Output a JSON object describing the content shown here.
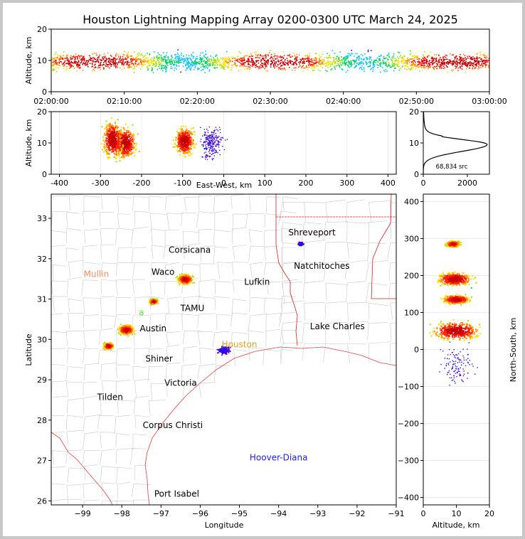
{
  "chart_data": {
    "title": "Houston Lightning Mapping Array 0200-0300 UTC March 24, 2025",
    "panels": {
      "time_altitude": {
        "type": "heatmap",
        "ylabel": "Altitude, km",
        "ylim": [
          0,
          20
        ],
        "yticks": [
          "0",
          "10",
          "20"
        ],
        "xticks": [
          "02:00:00",
          "02:10:00",
          "02:20:00",
          "02:30:00",
          "02:40:00",
          "02:50:00",
          "03:00:00"
        ],
        "band_center_km": 9.5
      },
      "ew_altitude": {
        "type": "heatmap",
        "xlabel": "East-West, km",
        "ylabel": "Altitude, km",
        "xlim": [
          -420,
          420
        ],
        "ylim": [
          0,
          20
        ],
        "xticks": [
          -400,
          -300,
          -200,
          -100,
          0,
          100,
          200,
          300,
          400
        ],
        "yticks": [
          0,
          10,
          20
        ],
        "cells": [
          {
            "x": -240,
            "z": 10,
            "sx": 25,
            "sz": 3.5
          },
          {
            "x": -270,
            "z": 11,
            "sx": 22,
            "sz": 4
          },
          {
            "x": -95,
            "z": 10.5,
            "sx": 22,
            "sz": 3
          }
        ]
      },
      "altitude_histogram": {
        "type": "line",
        "xlim": [
          0,
          3000
        ],
        "ylim": [
          0,
          20
        ],
        "xticks": [
          0,
          2000
        ],
        "yticks": [
          0,
          10,
          20
        ],
        "peak_altitude_km": 9.5,
        "peak_count": 2900,
        "annotation": "68,834 src"
      },
      "plan_view": {
        "type": "scatter",
        "xlabel": "Longitude",
        "ylabel": "Latitude",
        "xlim": [
          -99.8,
          -91
        ],
        "ylim": [
          25.9,
          33.6
        ],
        "xticks": [
          -99,
          -98,
          -97,
          -96,
          -95,
          -94,
          -93,
          -92,
          -91
        ],
        "yticks": [
          26,
          27,
          28,
          29,
          30,
          31,
          32,
          33
        ],
        "cities": [
          {
            "name": "Shreveport",
            "lon": -93.15,
            "lat": 32.58,
            "color": "#000000"
          },
          {
            "name": "Corsicana",
            "lon": -96.27,
            "lat": 32.15,
            "color": "#000000"
          },
          {
            "name": "Mullin",
            "lon": -98.65,
            "lat": 31.55,
            "color": "#f09060"
          },
          {
            "name": "Waco",
            "lon": -96.95,
            "lat": 31.6,
            "color": "#000000"
          },
          {
            "name": "Natchitoches",
            "lon": -92.9,
            "lat": 31.75,
            "color": "#000000"
          },
          {
            "name": "Lufkin",
            "lon": -94.55,
            "lat": 31.35,
            "color": "#000000"
          },
          {
            "name": "TAMU",
            "lon": -96.2,
            "lat": 30.7,
            "color": "#000000"
          },
          {
            "name": "a",
            "lon": -97.5,
            "lat": 30.6,
            "color": "#60e040"
          },
          {
            "name": "Austin",
            "lon": -97.2,
            "lat": 30.2,
            "color": "#000000"
          },
          {
            "name": "Lake Charles",
            "lon": -92.5,
            "lat": 30.25,
            "color": "#000000"
          },
          {
            "name": "Houston",
            "lon": -95.0,
            "lat": 29.8,
            "color": "#e0a020"
          },
          {
            "name": "Shiner",
            "lon": -97.05,
            "lat": 29.45,
            "color": "#000000"
          },
          {
            "name": "Victoria",
            "lon": -96.5,
            "lat": 28.85,
            "color": "#000000"
          },
          {
            "name": "Tilden",
            "lon": -98.3,
            "lat": 28.5,
            "color": "#000000"
          },
          {
            "name": "Corpus Christi",
            "lon": -96.7,
            "lat": 27.8,
            "color": "#000000"
          },
          {
            "name": "Hoover-Diana",
            "lon": -94.0,
            "lat": 27.0,
            "color": "#2020e0"
          },
          {
            "name": "Port Isabel",
            "lon": -96.6,
            "lat": 26.1,
            "color": "#000000"
          }
        ],
        "storms": [
          {
            "lon": -96.4,
            "lat": 31.5,
            "r": 9
          },
          {
            "lon": -97.2,
            "lat": 30.95,
            "r": 5
          },
          {
            "lon": -97.9,
            "lat": 30.25,
            "r": 9
          },
          {
            "lon": -98.35,
            "lat": 29.85,
            "r": 6
          },
          {
            "lon": -95.4,
            "lat": 29.75,
            "r": 7,
            "sparse": true
          },
          {
            "lon": -93.45,
            "lat": 32.38,
            "r": 3,
            "sparse": true
          }
        ]
      },
      "ns_altitude": {
        "type": "heatmap",
        "xlabel": "Altitude, km",
        "ylabel": "North-South, km",
        "xlim": [
          0,
          20
        ],
        "ylim": [
          -420,
          420
        ],
        "xticks": [
          0,
          10,
          20
        ],
        "yticks": [
          -400,
          -300,
          -200,
          -100,
          0,
          100,
          200,
          300,
          400
        ],
        "cells": [
          {
            "z": 9.5,
            "y": 190,
            "sz": 5,
            "sy": 18
          },
          {
            "z": 10,
            "y": 135,
            "sz": 4,
            "sy": 12
          },
          {
            "z": 10,
            "y": 50,
            "sz": 7,
            "sy": 25
          },
          {
            "z": 9,
            "y": 285,
            "sz": 2,
            "sy": 8
          }
        ]
      }
    }
  }
}
